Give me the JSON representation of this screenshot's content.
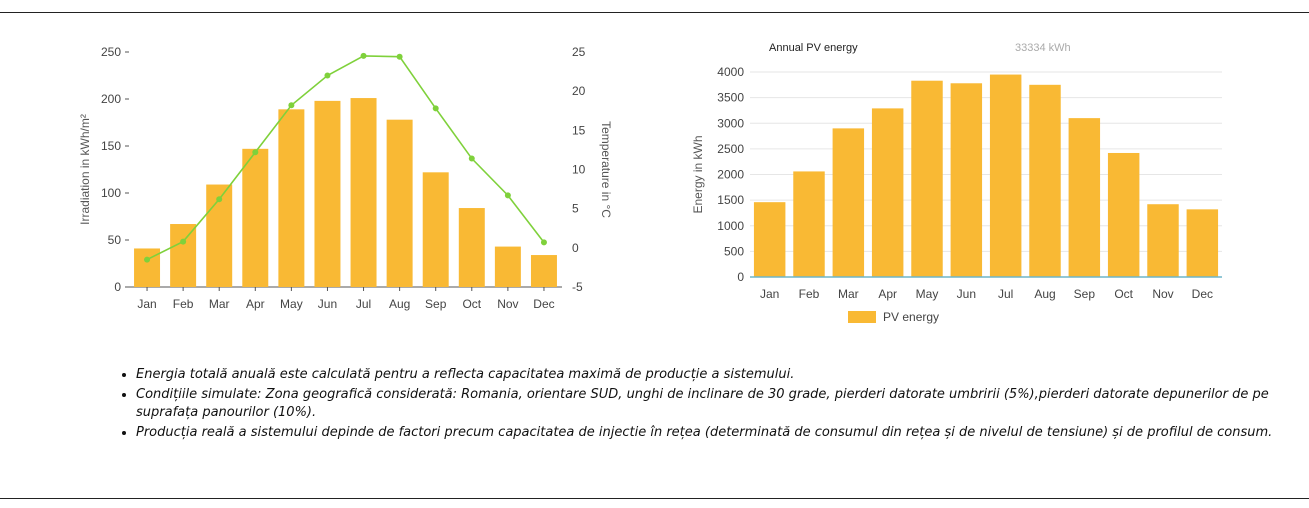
{
  "chart_data": [
    {
      "type": "bar",
      "categories": [
        "Jan",
        "Feb",
        "Mar",
        "Apr",
        "May",
        "Jun",
        "Jul",
        "Aug",
        "Sep",
        "Oct",
        "Nov",
        "Dec"
      ],
      "series": [
        {
          "values": [
            41,
            67,
            109,
            147,
            189,
            198,
            201,
            178,
            122,
            84,
            43,
            34
          ],
          "axis": "left",
          "color": "#F9B934"
        },
        {
          "type": "line",
          "values": [
            -1.5,
            0.8,
            6.2,
            12.2,
            18.2,
            22,
            24.5,
            24.4,
            17.8,
            11.4,
            6.7,
            0.7
          ],
          "axis": "right",
          "color": "#7FD13B"
        }
      ],
      "ylabel": "Irradiation in kWh/m²",
      "y2label": "Temperature in °C",
      "ylim": [
        0,
        250
      ],
      "y2lim": [
        -5,
        25
      ],
      "yticks": [
        "0",
        "50",
        "100",
        "150",
        "200",
        "250"
      ],
      "y2ticks": [
        "-5",
        "0",
        "5",
        "10",
        "15",
        "20",
        "25"
      ],
      "grid": false
    },
    {
      "type": "bar",
      "categories": [
        "Jan",
        "Feb",
        "Mar",
        "Apr",
        "May",
        "Jun",
        "Jul",
        "Aug",
        "Sep",
        "Oct",
        "Nov",
        "Dec"
      ],
      "series": [
        {
          "name": "PV energy",
          "values": [
            1460,
            2060,
            2900,
            3290,
            3830,
            3780,
            3950,
            3750,
            3100,
            2420,
            1420,
            1320
          ],
          "color": "#F9B934"
        }
      ],
      "title": "Annual PV energy",
      "total": "33334 kWh",
      "ylabel": "Energy in kWh",
      "ylim": [
        0,
        4000
      ],
      "yticks": [
        "0",
        "500",
        "1000",
        "1500",
        "2000",
        "2500",
        "3000",
        "3500",
        "4000"
      ],
      "grid": true,
      "legend": "bottom"
    }
  ],
  "notes": [
    "Energia totală anuală este calculată pentru a reflecta capacitatea maximă de producție a sistemului.",
    "Condițiile simulate: Zona geografică considerată: Romania, orientare SUD, unghi de inclinare de 30 grade, pierderi datorate umbririi (5%),pierderi datorate depunerilor de pe suprafața panourilor (10%).",
    "Producția reală a sistemului depinde de factori precum capacitatea de injectie în rețea (determinată de consumul din rețea și de nivelul de tensiune) și de profilul de consum."
  ]
}
